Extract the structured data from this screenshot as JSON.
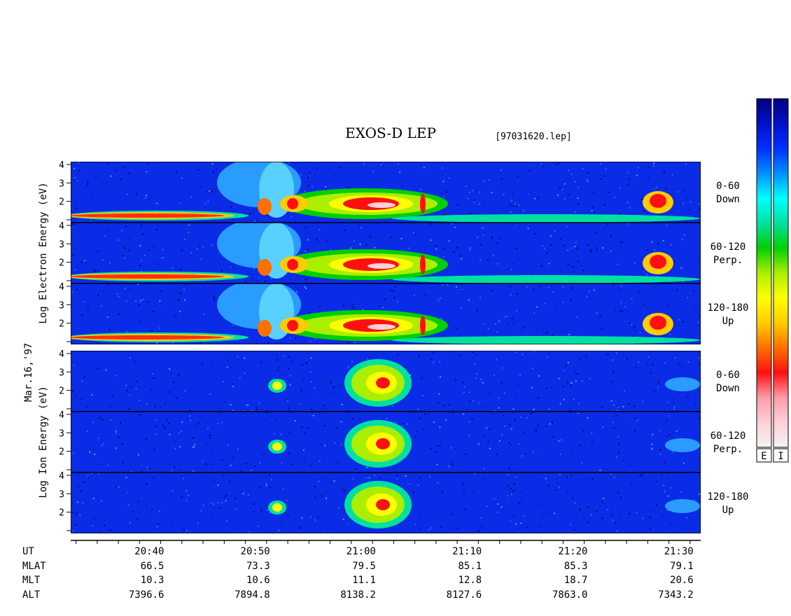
{
  "title": "EXOS-D LEP",
  "file_label": "[97031620.lep]",
  "date_label": "Mar.16,'97",
  "colors": {
    "colorbar_electron_label": "E",
    "colorbar_ion_label": "I",
    "palette": [
      "#f2f2f2",
      "#ffd0d8",
      "#ff9aa8",
      "#ff1010",
      "#ff7000",
      "#ffcc00",
      "#ffff00",
      "#aaee00",
      "#00d000",
      "#00e0a0",
      "#00ffff",
      "#0090ff",
      "#0030ff",
      "#0010c8",
      "#000080"
    ]
  },
  "chart_data": {
    "type": "heatmap",
    "x_ticks": [
      "20:40",
      "20:50",
      "21:00",
      "21:10",
      "21:20",
      "21:30"
    ],
    "y_ticks": [
      "2",
      "3",
      "4"
    ],
    "y_scale": "log energy (eV)",
    "groups": [
      {
        "species": "electron",
        "ylabel": [
          "Log",
          "Electron",
          "Energy",
          "(eV)"
        ],
        "panels": [
          {
            "angle": "0-60",
            "direction": "Down"
          },
          {
            "angle": "60-120",
            "direction": "Perp."
          },
          {
            "angle": "120-180",
            "direction": "Up"
          }
        ]
      },
      {
        "species": "ion",
        "ylabel": [
          "Log",
          "Ion",
          "Energy",
          "(eV)"
        ],
        "panels": [
          {
            "angle": "0-60",
            "direction": "Down"
          },
          {
            "angle": "60-120",
            "direction": "Perp."
          },
          {
            "angle": "120-180",
            "direction": "Up"
          }
        ]
      }
    ],
    "ephemeris": {
      "rows": [
        {
          "label": "UT",
          "values": [
            "20:40",
            "20:50",
            "21:00",
            "21:10",
            "21:20",
            "21:30"
          ]
        },
        {
          "label": "MLAT",
          "values": [
            "66.5",
            "73.3",
            "79.5",
            "85.1",
            "85.3",
            "79.1"
          ]
        },
        {
          "label": "MLT",
          "values": [
            "10.3",
            "10.6",
            "11.1",
            "12.8",
            "18.7",
            "20.6"
          ]
        },
        {
          "label": "ALT",
          "values": [
            "7396.6",
            "7894.8",
            "8138.2",
            "8127.6",
            "7863.0",
            "7343.2"
          ]
        }
      ]
    }
  }
}
